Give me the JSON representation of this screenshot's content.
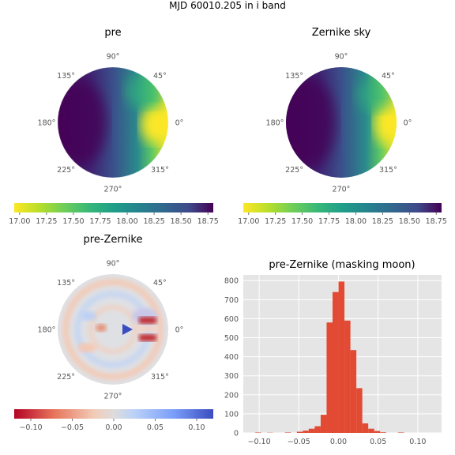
{
  "suptitle": "MJD 60010.205 in i band",
  "panels": {
    "pre": {
      "title": "pre",
      "angle_labels": [
        "90°",
        "45°",
        "0°",
        "315°",
        "270°",
        "225°",
        "180°",
        "135°"
      ],
      "colorbar": {
        "cmap": "viridis_r",
        "range": [
          16.95,
          18.8
        ],
        "ticks": [
          "17.00",
          "17.25",
          "17.50",
          "17.75",
          "18.00",
          "18.25",
          "18.50",
          "18.75"
        ]
      }
    },
    "zernike": {
      "title": "Zernike sky",
      "angle_labels": [
        "90°",
        "45°",
        "0°",
        "315°",
        "270°",
        "225°",
        "180°",
        "135°"
      ],
      "colorbar": {
        "cmap": "viridis_r",
        "range": [
          16.95,
          18.8
        ],
        "ticks": [
          "17.00",
          "17.25",
          "17.50",
          "17.75",
          "18.00",
          "18.25",
          "18.50",
          "18.75"
        ]
      }
    },
    "diff": {
      "title": "pre-Zernike",
      "angle_labels": [
        "90°",
        "45°",
        "0°",
        "315°",
        "270°",
        "225°",
        "180°",
        "135°"
      ],
      "colorbar": {
        "cmap": "coolwarm_r",
        "range": [
          -0.12,
          0.12
        ],
        "ticks": [
          "−0.10",
          "−0.05",
          "0.00",
          "0.05",
          "0.10"
        ]
      }
    }
  },
  "chart_data": {
    "type": "bar",
    "title": "pre-Zernike (masking moon)",
    "xlabel": "",
    "ylabel": "",
    "xlim": [
      -0.12,
      0.13
    ],
    "ylim": [
      0,
      830
    ],
    "x_ticks": [
      "−0.10",
      "−0.05",
      "0.00",
      "0.05",
      "0.10"
    ],
    "y_ticks": [
      "0",
      "100",
      "200",
      "300",
      "400",
      "500",
      "600",
      "700",
      "800"
    ],
    "bar_color": "#e24a33",
    "bin_width": 0.0075,
    "bin_centers": [
      -0.1012,
      -0.0862,
      -0.0637,
      -0.0487,
      -0.0412,
      -0.0337,
      -0.0262,
      -0.0187,
      -0.0112,
      -0.0037,
      0.0038,
      0.0113,
      0.0188,
      0.0263,
      0.0338,
      0.0413,
      0.0488,
      0.0563,
      0.0788
    ],
    "counts": [
      2,
      1,
      2,
      6,
      12,
      22,
      35,
      95,
      580,
      740,
      795,
      590,
      435,
      235,
      50,
      22,
      10,
      3,
      2
    ]
  }
}
